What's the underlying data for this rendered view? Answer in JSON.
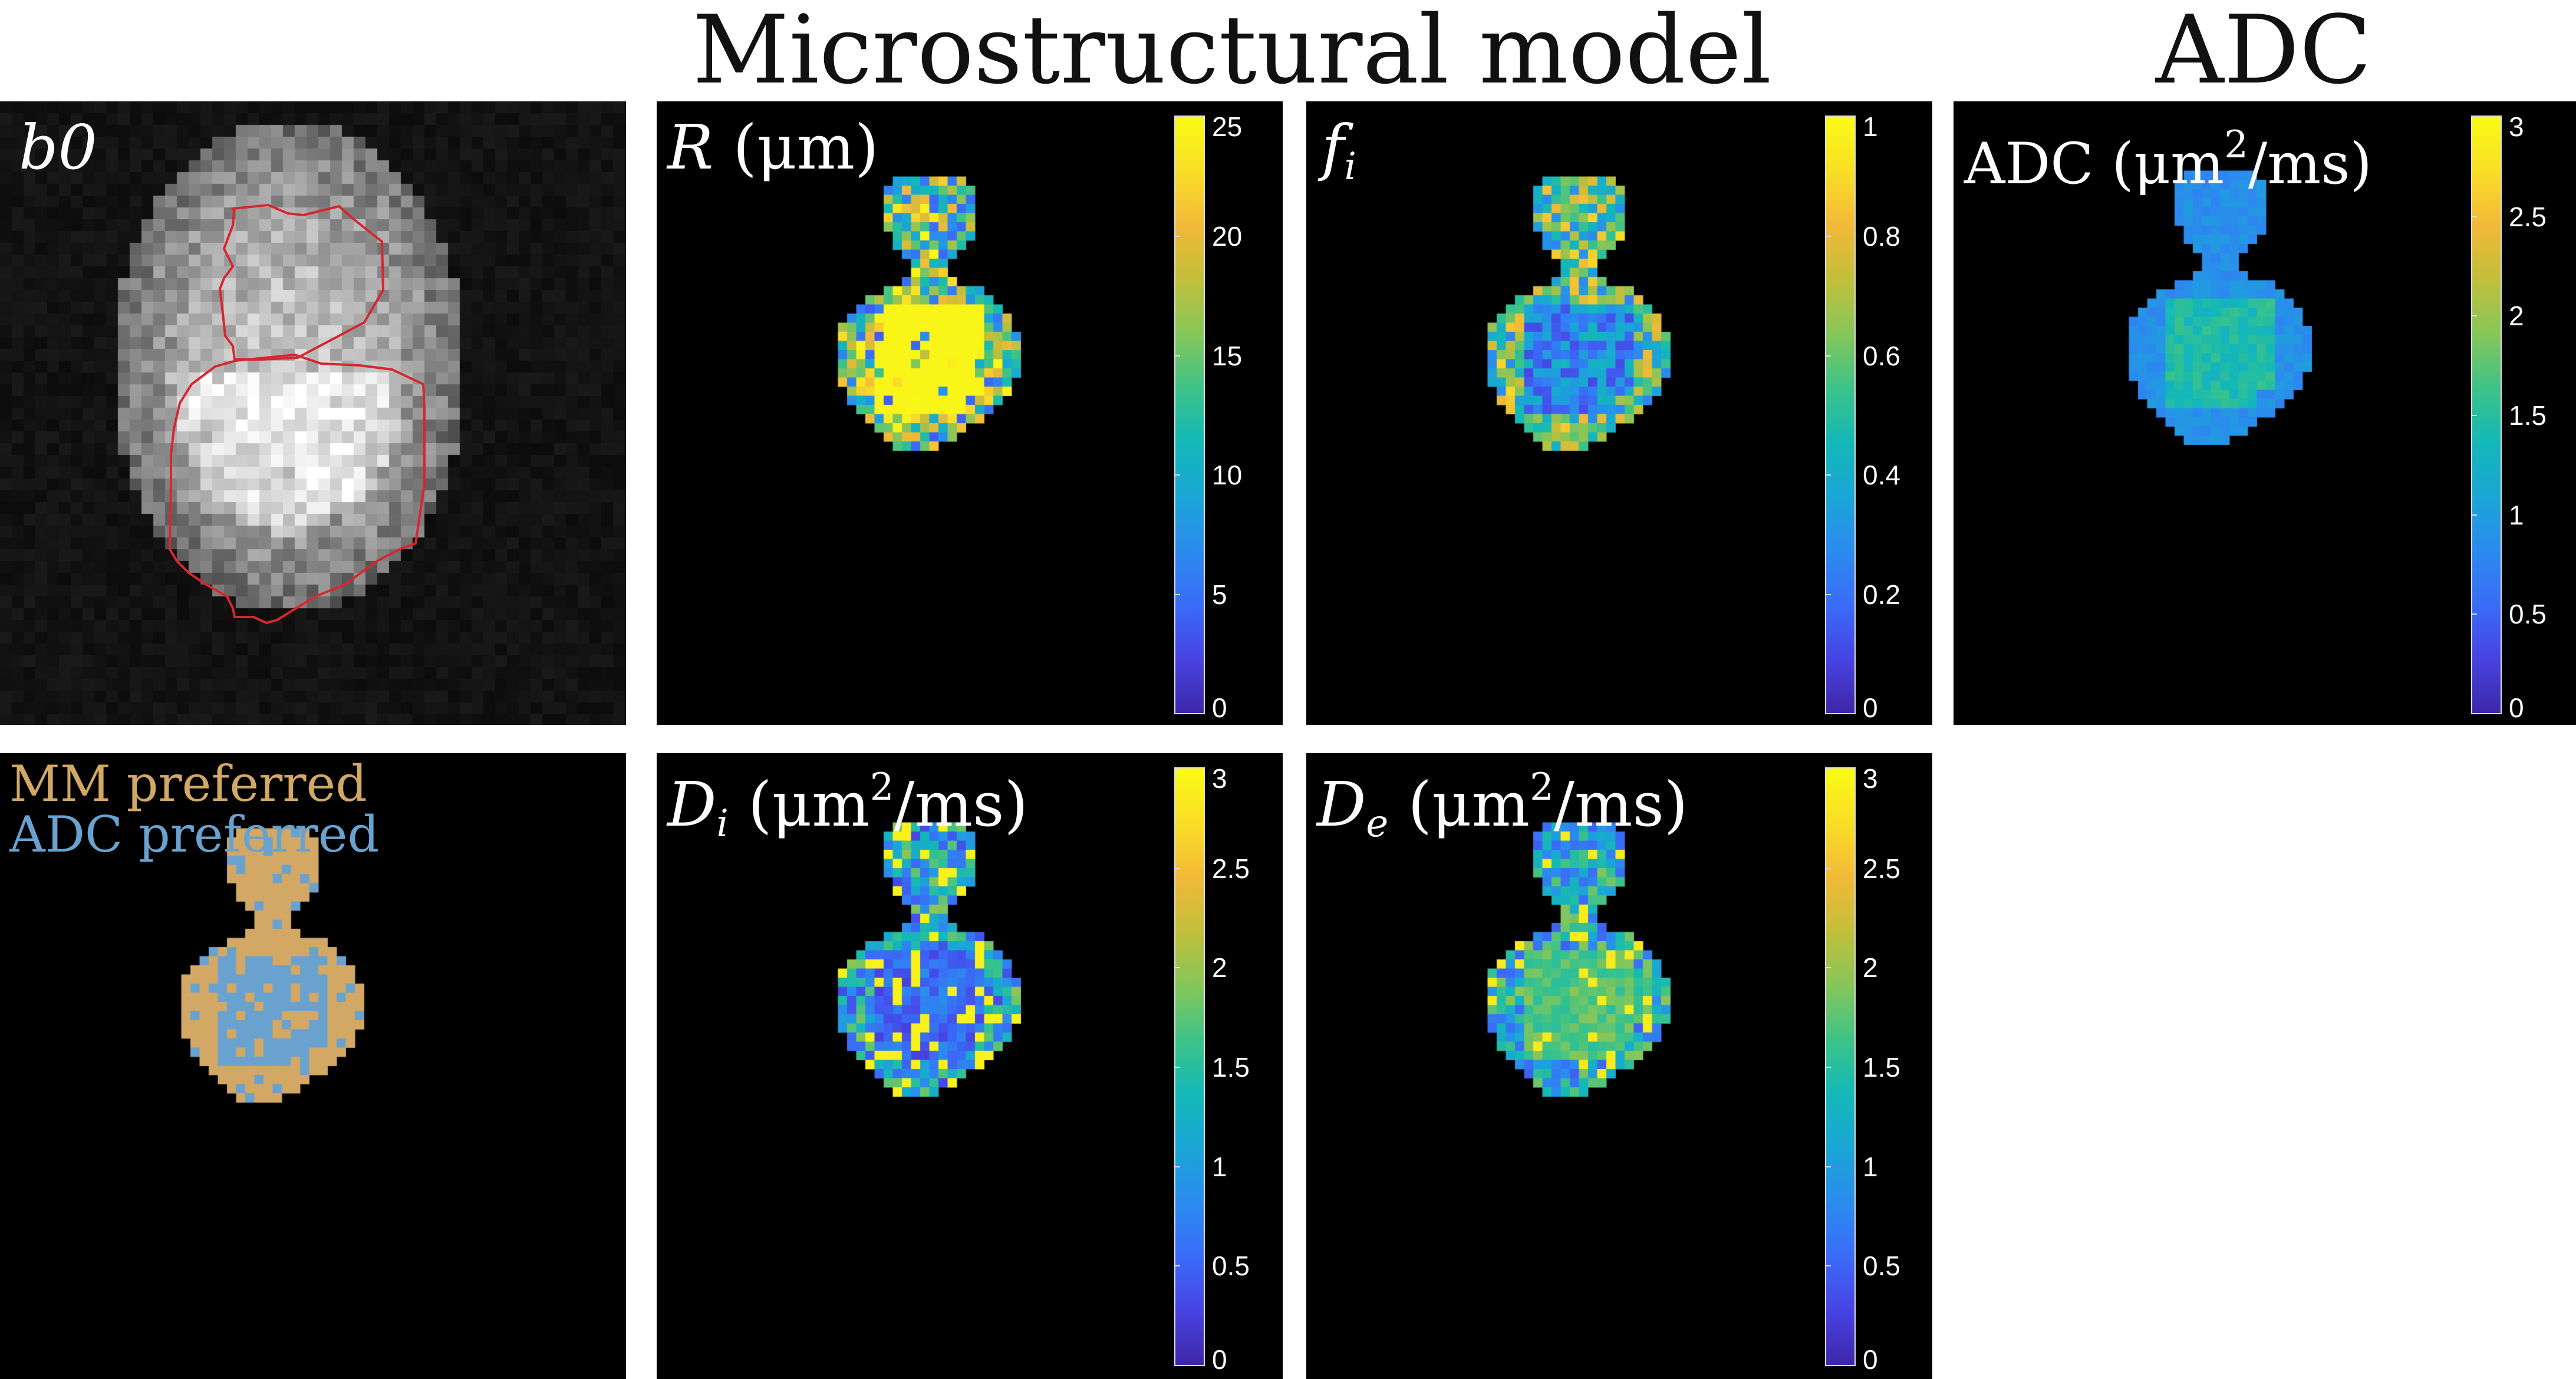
{
  "titles": {
    "microstructural": "Microstructural model",
    "adc": "ADC"
  },
  "panels": {
    "b0": {
      "label": "b0"
    },
    "R": {
      "label_symbol": "R",
      "label_unit": "(μm)",
      "colorbar": {
        "min": 0,
        "max": 25,
        "ticks": [
          "0",
          "5",
          "10",
          "15",
          "20",
          "25"
        ]
      }
    },
    "fi": {
      "label_symbol": "f",
      "label_sub": "i",
      "colorbar": {
        "min": 0,
        "max": 1,
        "ticks": [
          "0",
          "0.2",
          "0.4",
          "0.6",
          "0.8",
          "1"
        ]
      }
    },
    "adc_map": {
      "label_text": "ADC (μm",
      "label_sup": "2",
      "label_tail": "/ms)",
      "colorbar": {
        "min": 0,
        "max": 3,
        "ticks": [
          "0",
          "0.5",
          "1",
          "1.5",
          "2",
          "2.5",
          "3"
        ]
      }
    },
    "preference": {
      "legend_mm": "MM preferred",
      "legend_adc": "ADC preferred",
      "mm_color": "#d2a864",
      "adc_color": "#6aa2cf"
    },
    "Di": {
      "label_symbol": "D",
      "label_sub": "i",
      "label_unit": "(μm",
      "label_sup": "2",
      "label_tail": "/ms)",
      "colorbar": {
        "min": 0,
        "max": 3,
        "ticks": [
          "0",
          "0.5",
          "1",
          "1.5",
          "2",
          "2.5",
          "3"
        ]
      }
    },
    "De": {
      "label_symbol": "D",
      "label_sub": "e",
      "label_unit": "(μm",
      "label_sup": "2",
      "label_tail": "/ms)",
      "colorbar": {
        "min": 0,
        "max": 3,
        "ticks": [
          "0",
          "0.5",
          "1",
          "1.5",
          "2",
          "2.5",
          "3"
        ]
      }
    }
  },
  "colormap": [
    "#3e26a8",
    "#4743e3",
    "#3a6cf8",
    "#2b8bee",
    "#1aa6d6",
    "#13b8b7",
    "#3dc387",
    "#86c659",
    "#c2bf3a",
    "#f2b938",
    "#f9de26",
    "#f9fb15"
  ],
  "roi_outline_color": "#d8262e"
}
